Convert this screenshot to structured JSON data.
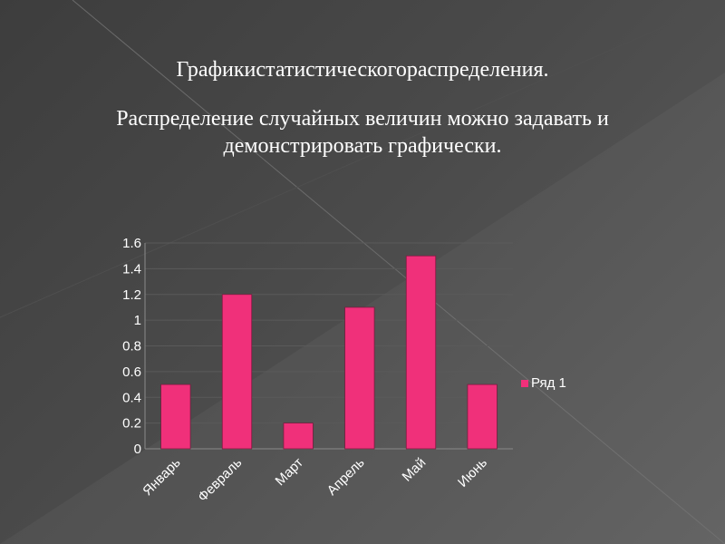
{
  "slide": {
    "heading": "Графикистатистическогораспределения.",
    "subheading": "Распределение случайных величин можно задавать и демонстрировать графически."
  },
  "colors": {
    "background": "#4a4a4a",
    "bar": "#f0307a",
    "text": "#ffffff",
    "gridline": "#5a5a5a"
  },
  "chart_data": {
    "type": "bar",
    "categories": [
      "Январь",
      "Февраль",
      "Март",
      "Апрель",
      "Май",
      "Июнь"
    ],
    "series": [
      {
        "name": "Ряд 1",
        "values": [
          0.5,
          1.2,
          0.2,
          1.1,
          1.5,
          0.5
        ]
      }
    ],
    "yticks": [
      "0",
      "0.2",
      "0.4",
      "0.6",
      "0.8",
      "1",
      "1.2",
      "1.4",
      "1.6"
    ],
    "ylim": [
      0,
      1.6
    ],
    "grid": true,
    "legend_position": "right"
  }
}
